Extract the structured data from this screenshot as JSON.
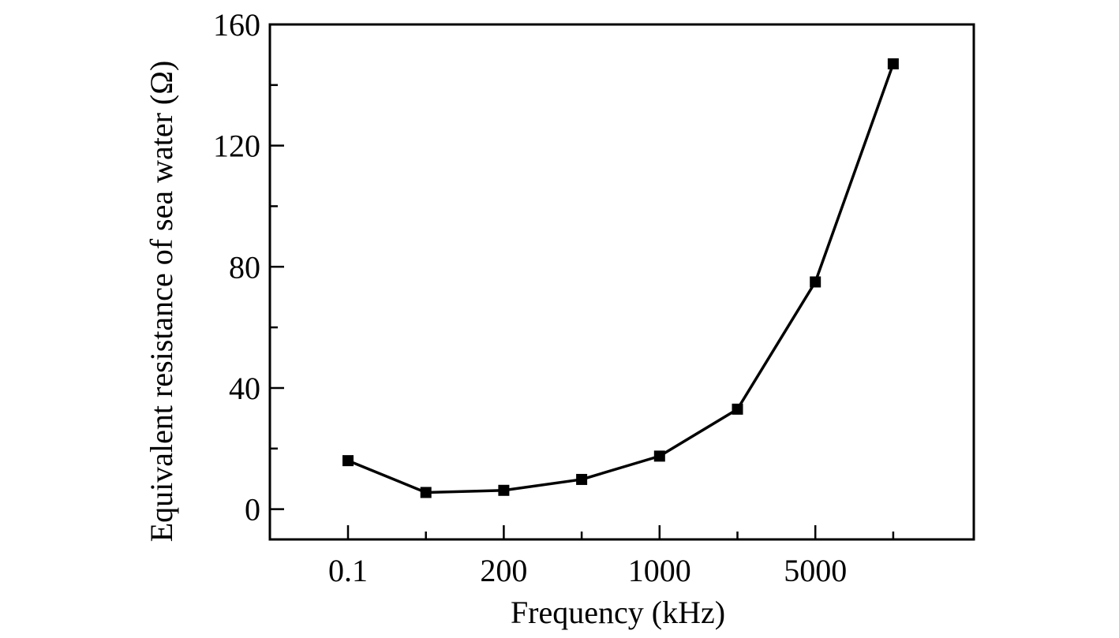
{
  "chart_data": {
    "type": "line",
    "xlabel": "Frequency (kHz)",
    "ylabel": "Equivalent resistance of sea water (Ω)",
    "categories": [
      "0.1",
      "",
      "200",
      "",
      "1000",
      "",
      "5000",
      ""
    ],
    "x_tick_labels": [
      "0.1",
      "200",
      "1000",
      "5000"
    ],
    "ylim": [
      -10,
      160
    ],
    "y_major_ticks": [
      0,
      40,
      80,
      120,
      160
    ],
    "y_minor_ticks": [
      20,
      60,
      100,
      140
    ],
    "grid": false,
    "legend": "none",
    "marker": "square",
    "series": [
      {
        "values": [
          16,
          5.5,
          6.2,
          9.8,
          17.5,
          33,
          75,
          147
        ]
      }
    ],
    "colors": {
      "line": "#000000",
      "marker": "#000000",
      "frame": "#000000"
    }
  }
}
